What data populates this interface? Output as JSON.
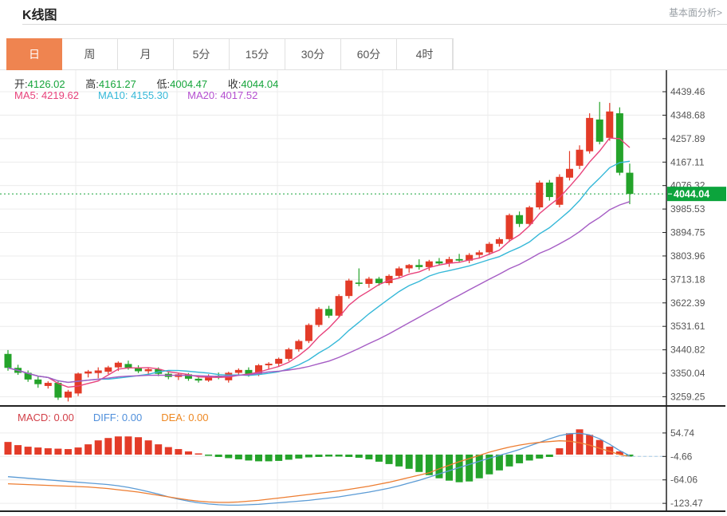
{
  "header": {
    "title": "K线图",
    "analysis_link": "基本面分析>"
  },
  "tabs": {
    "active_index": 0,
    "items": [
      {
        "label": "日",
        "name": "tab-day"
      },
      {
        "label": "周",
        "name": "tab-week"
      },
      {
        "label": "月",
        "name": "tab-month"
      },
      {
        "label": "5分",
        "name": "tab-5min"
      },
      {
        "label": "15分",
        "name": "tab-15min"
      },
      {
        "label": "30分",
        "name": "tab-30min"
      },
      {
        "label": "60分",
        "name": "tab-60min"
      },
      {
        "label": "4时",
        "name": "tab-4hour"
      }
    ]
  },
  "ohlc": {
    "open_label": "开:",
    "open_value": "4126.02",
    "high_label": "高:",
    "high_value": "4161.27",
    "low_label": "低:",
    "low_value": "4004.47",
    "close_label": "收:",
    "close_value": "4044.04"
  },
  "ma_legend": {
    "items": [
      {
        "label": "MA5:",
        "value": "4219.62",
        "color": "#e8437c",
        "name": "ma5-legend"
      },
      {
        "label": "MA10:",
        "value": "4155.30",
        "color": "#35b8d8",
        "name": "ma10-legend"
      },
      {
        "label": "MA20:",
        "value": "4017.52",
        "color": "#b44fd0",
        "name": "ma20-legend"
      }
    ]
  },
  "macd_legend": {
    "items": [
      {
        "label": "MACD:",
        "value": "0.00",
        "color": "#d23f48",
        "name": "macd-legend"
      },
      {
        "label": "DIFF:",
        "value": "0.00",
        "color": "#4f8fdb",
        "name": "diff-legend"
      },
      {
        "label": "DEA:",
        "value": "0.00",
        "color": "#ee8822",
        "name": "dea-legend"
      }
    ]
  },
  "colors": {
    "up": "#e33b28",
    "down": "#24a32a",
    "ma5": "#e8437c",
    "ma10": "#35b8d8",
    "ma20": "#a55cc4",
    "diff_line": "#5b9bd5",
    "dea_line": "#ed7d31",
    "price_line": "#16a53b",
    "price_badge_bg": "#0ca43c",
    "price_badge_text": "#ffffff",
    "grid": "#ececec",
    "axis": "#222222",
    "axis_text": "#555555",
    "tab_active_bg": "#ef8450",
    "ohlc_value": "#16a53b",
    "dashed_level_line": "#a8cbe8"
  },
  "chart_data": {
    "type": "candlestick",
    "title": "K线图",
    "legend_position": "top-left-overlay",
    "grid": true,
    "price_panel": {
      "y_ticks": [
        4439.46,
        4348.68,
        4257.89,
        4167.11,
        4076.32,
        3985.53,
        3894.75,
        3803.96,
        3713.18,
        3622.39,
        3531.61,
        3440.82,
        3350.04,
        3259.25
      ],
      "current_price": 4044.04,
      "current_price_label": "4044.04",
      "ma_periods": [
        5,
        10,
        20
      ],
      "candles_ohlc": [
        [
          3425,
          3440,
          3360,
          3371
        ],
        [
          3371,
          3383,
          3344,
          3352
        ],
        [
          3352,
          3361,
          3317,
          3326
        ],
        [
          3326,
          3341,
          3294,
          3308
        ],
        [
          3301,
          3319,
          3291,
          3313
        ],
        [
          3313,
          3319,
          3247,
          3256
        ],
        [
          3256,
          3286,
          3241,
          3279
        ],
        [
          3272,
          3353,
          3262,
          3349
        ],
        [
          3349,
          3363,
          3334,
          3357
        ],
        [
          3351,
          3373,
          3331,
          3361
        ],
        [
          3356,
          3379,
          3347,
          3373
        ],
        [
          3373,
          3396,
          3359,
          3391
        ],
        [
          3386,
          3399,
          3364,
          3372
        ],
        [
          3372,
          3381,
          3351,
          3358
        ],
        [
          3358,
          3371,
          3344,
          3366
        ],
        [
          3366,
          3373,
          3339,
          3348
        ],
        [
          3348,
          3356,
          3327,
          3336
        ],
        [
          3336,
          3353,
          3324,
          3346
        ],
        [
          3346,
          3351,
          3321,
          3329
        ],
        [
          3329,
          3341,
          3314,
          3322
        ],
        [
          3322,
          3346,
          3317,
          3341
        ],
        [
          3341,
          3353,
          3327,
          3333
        ],
        [
          3323,
          3356,
          3314,
          3352
        ],
        [
          3352,
          3369,
          3341,
          3363
        ],
        [
          3363,
          3373,
          3337,
          3346
        ],
        [
          3346,
          3386,
          3339,
          3381
        ],
        [
          3381,
          3393,
          3367,
          3387
        ],
        [
          3387,
          3411,
          3377,
          3406
        ],
        [
          3406,
          3449,
          3397,
          3443
        ],
        [
          3443,
          3481,
          3434,
          3475
        ],
        [
          3475,
          3543,
          3467,
          3537
        ],
        [
          3537,
          3606,
          3529,
          3599
        ],
        [
          3599,
          3611,
          3564,
          3573
        ],
        [
          3573,
          3656,
          3565,
          3649
        ],
        [
          3649,
          3716,
          3639,
          3709
        ],
        [
          3701,
          3756,
          3687,
          3696
        ],
        [
          3696,
          3723,
          3681,
          3716
        ],
        [
          3716,
          3723,
          3689,
          3699
        ],
        [
          3699,
          3733,
          3691,
          3727
        ],
        [
          3727,
          3763,
          3717,
          3756
        ],
        [
          3756,
          3773,
          3739,
          3769
        ],
        [
          3769,
          3791,
          3751,
          3761
        ],
        [
          3761,
          3789,
          3747,
          3783
        ],
        [
          3783,
          3796,
          3768,
          3775
        ],
        [
          3775,
          3801,
          3762,
          3792
        ],
        [
          3792,
          3812,
          3780,
          3786
        ],
        [
          3786,
          3815,
          3776,
          3808
        ],
        [
          3808,
          3826,
          3794,
          3818
        ],
        [
          3818,
          3858,
          3808,
          3851
        ],
        [
          3851,
          3876,
          3840,
          3869
        ],
        [
          3869,
          3968,
          3858,
          3962
        ],
        [
          3962,
          3976,
          3916,
          3928
        ],
        [
          3928,
          3998,
          3920,
          3992
        ],
        [
          3992,
          4096,
          3984,
          4088
        ],
        [
          4088,
          4098,
          4018,
          4032
        ],
        [
          4002,
          4120,
          3992,
          4110
        ],
        [
          4107,
          4210,
          4096,
          4141
        ],
        [
          4153,
          4232,
          4140,
          4215
        ],
        [
          4209,
          4356,
          4200,
          4338
        ],
        [
          4332,
          4400,
          4236,
          4246
        ],
        [
          4261,
          4396,
          4250,
          4363
        ],
        [
          4356,
          4379,
          4116,
          4126
        ],
        [
          4126,
          4161.27,
          4004.47,
          4044.04
        ]
      ]
    },
    "macd_panel": {
      "y_ticks": [
        54.74,
        -4.66,
        -64.06,
        -123.47
      ],
      "dashed_level": -4.66,
      "histogram": [
        32,
        24,
        20,
        18,
        16,
        15,
        14,
        18,
        26,
        36,
        42,
        46,
        46,
        44,
        36,
        26,
        19,
        14,
        8,
        3,
        -3,
        -6,
        -9,
        -12,
        -15,
        -17,
        -17,
        -16,
        -13,
        -10,
        -7,
        -6,
        -5,
        -5,
        -6,
        -8,
        -12,
        -18,
        -24,
        -30,
        -36,
        -44,
        -52,
        -60,
        -66,
        -70,
        -68,
        -60,
        -50,
        -40,
        -30,
        -22,
        -15,
        -10,
        -6,
        16,
        54,
        64,
        50,
        37,
        20,
        8,
        -5
      ],
      "diff": [
        -56,
        -58,
        -60,
        -62,
        -64,
        -66,
        -68,
        -70,
        -72,
        -74,
        -76,
        -79,
        -83,
        -88,
        -94,
        -100,
        -107,
        -113,
        -118,
        -122,
        -125,
        -127,
        -128,
        -128,
        -127,
        -126,
        -124,
        -122,
        -120,
        -118,
        -116,
        -113,
        -110,
        -107,
        -103,
        -99,
        -95,
        -90,
        -85,
        -79,
        -72,
        -65,
        -57,
        -49,
        -41,
        -33,
        -25,
        -17,
        -9,
        -2,
        5,
        13,
        22,
        31,
        40,
        48,
        53,
        54,
        50,
        40,
        26,
        10,
        -3
      ],
      "dea": [
        -74,
        -75,
        -76,
        -77,
        -78,
        -79,
        -80,
        -81,
        -82,
        -84,
        -86,
        -89,
        -92,
        -95,
        -99,
        -103,
        -107,
        -111,
        -115,
        -118,
        -120,
        -121,
        -121,
        -120,
        -118,
        -116,
        -113,
        -110,
        -107,
        -104,
        -101,
        -98,
        -95,
        -92,
        -88,
        -84,
        -80,
        -75,
        -70,
        -64,
        -58,
        -52,
        -46,
        -36,
        -27,
        -18,
        -10,
        -2,
        6,
        13,
        19,
        24,
        28,
        31,
        33,
        35,
        34,
        30,
        24,
        16,
        8,
        0,
        -5
      ]
    }
  }
}
